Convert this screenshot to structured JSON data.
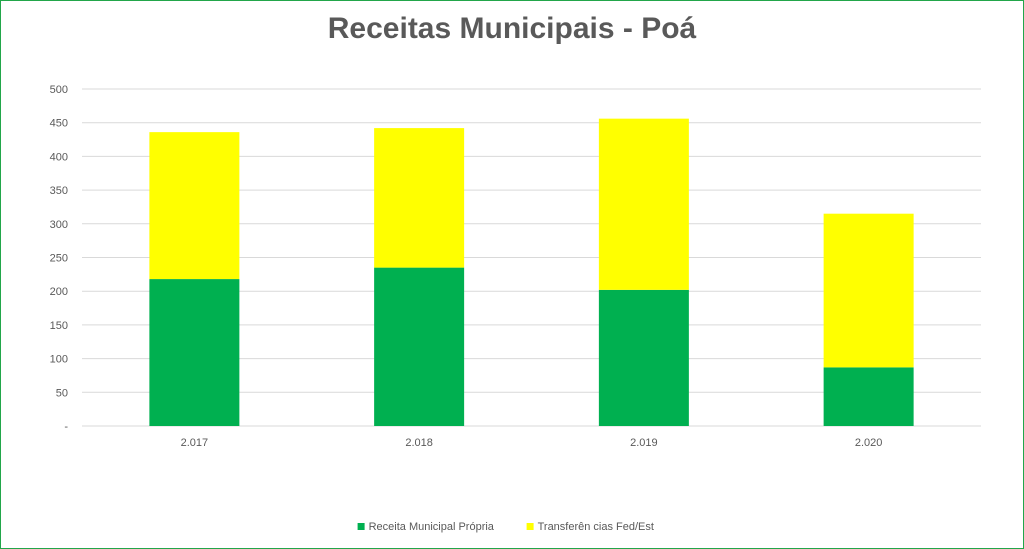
{
  "chart_data": {
    "type": "bar",
    "stacked": true,
    "title": "Receitas Municipais - Poá",
    "categories": [
      "2.017",
      "2.018",
      "2.019",
      "2.020"
    ],
    "series": [
      {
        "name": "Receita Municipal Própria",
        "values": [
          218,
          235,
          202,
          87
        ],
        "color": "#00b050"
      },
      {
        "name": "Transferên cias Fed/Est",
        "values": [
          218,
          207,
          254,
          228
        ],
        "color": "#ffff00"
      }
    ],
    "ylim": [
      0,
      500
    ],
    "yticks": [
      "-",
      "50",
      "100",
      "150",
      "200",
      "250",
      "300",
      "350",
      "400",
      "450",
      "500"
    ],
    "ytick_values": [
      0,
      50,
      100,
      150,
      200,
      250,
      300,
      350,
      400,
      450,
      500
    ],
    "grid": true,
    "legend_position": "bottom",
    "frame_color": "#22a64a",
    "grid_color": "#d9d9d9",
    "text_color": "#595959"
  }
}
